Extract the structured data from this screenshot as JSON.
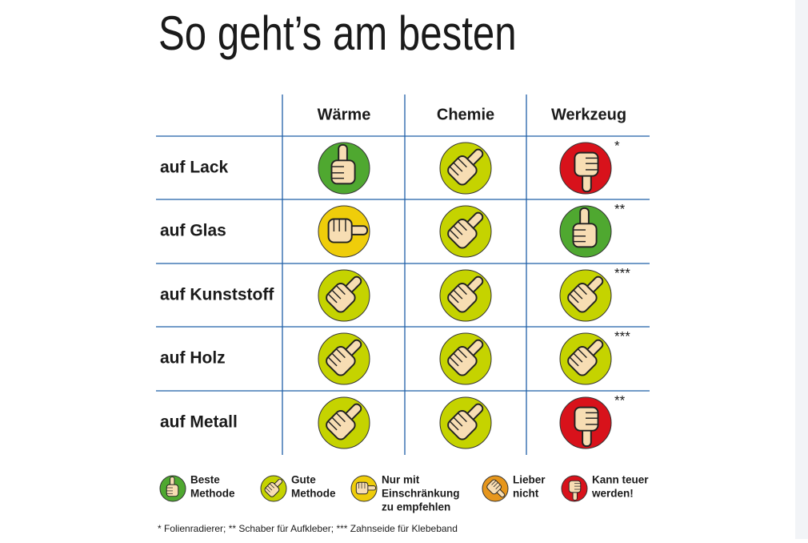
{
  "header": {
    "title": "So geht’s am besten"
  },
  "table": {
    "columns": [
      "Wärme",
      "Chemie",
      "Werkzeug"
    ],
    "rows": [
      {
        "label": "auf Lack",
        "cells": [
          {
            "rating": 0
          },
          {
            "rating": 1
          },
          {
            "rating": 4,
            "note": "*"
          }
        ]
      },
      {
        "label": "auf Glas",
        "cells": [
          {
            "rating": 2
          },
          {
            "rating": 1
          },
          {
            "rating": 0,
            "note": "**"
          }
        ]
      },
      {
        "label": "auf Kunststoff",
        "cells": [
          {
            "rating": 1
          },
          {
            "rating": 1
          },
          {
            "rating": 1,
            "note": "***"
          }
        ]
      },
      {
        "label": "auf Holz",
        "cells": [
          {
            "rating": 1
          },
          {
            "rating": 1
          },
          {
            "rating": 1,
            "note": "***"
          }
        ]
      },
      {
        "label": "auf Metall",
        "cells": [
          {
            "rating": 1
          },
          {
            "rating": 1
          },
          {
            "rating": 4,
            "note": "**"
          }
        ]
      }
    ]
  },
  "legend": [
    {
      "lines": [
        "Beste",
        "Methode"
      ],
      "color": "#4fa830"
    },
    {
      "lines": [
        "Gute",
        "Methode"
      ],
      "color": "#c5d300"
    },
    {
      "lines": [
        "Nur mit",
        "Einschränkung",
        "zu empfehlen"
      ],
      "color": "#efcd0a"
    },
    {
      "lines": [
        "Lieber",
        "nicht"
      ],
      "color": "#e6961c"
    },
    {
      "lines": [
        "Kann teuer",
        "werden!"
      ],
      "color": "#d8121b"
    }
  ],
  "footnote": "* Folienradierer; ** Schaber für Aufkleber; *** Zahnseide für Klebeband"
}
